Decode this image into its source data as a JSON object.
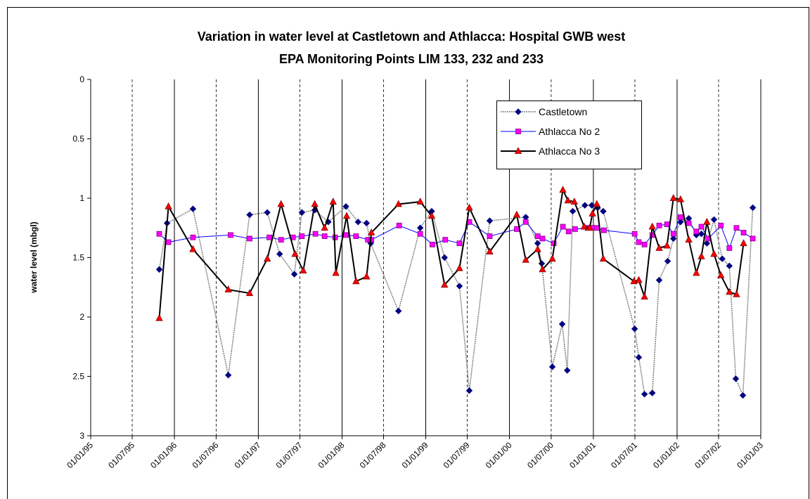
{
  "chart_data": {
    "type": "line",
    "title": "Variation in water level at Castletown and Athlacca: Hospital GWB west",
    "subtitle": "EPA Monitoring Points LIM 133, 232 and 233",
    "y_label": "water level (mbgl)",
    "ylim": [
      0,
      3
    ],
    "y_inverted": true,
    "yticks": [
      0,
      0.5,
      1,
      1.5,
      2,
      2.5,
      3
    ],
    "xlim": [
      "1995-01-01",
      "2003-01-01"
    ],
    "xticks": [
      {
        "value": "1995-01-01",
        "label": "01/01/95"
      },
      {
        "value": "1995-07-01",
        "label": "01/07/95"
      },
      {
        "value": "1996-01-01",
        "label": "01/01/96"
      },
      {
        "value": "1996-07-01",
        "label": "01/07/96"
      },
      {
        "value": "1997-01-01",
        "label": "01/01/97"
      },
      {
        "value": "1997-07-01",
        "label": "01/07/97"
      },
      {
        "value": "1998-01-01",
        "label": "01/01/98"
      },
      {
        "value": "1998-07-01",
        "label": "01/07/98"
      },
      {
        "value": "1999-01-01",
        "label": "01/01/99"
      },
      {
        "value": "1999-07-01",
        "label": "01/07/99"
      },
      {
        "value": "2000-01-01",
        "label": "01/01/00"
      },
      {
        "value": "2000-07-01",
        "label": "01/07/00"
      },
      {
        "value": "2001-01-01",
        "label": "01/01/01"
      },
      {
        "value": "2001-07-01",
        "label": "01/07/01"
      },
      {
        "value": "2002-01-01",
        "label": "01/01/02"
      },
      {
        "value": "2002-07-01",
        "label": "01/07/02"
      },
      {
        "value": "2003-01-01",
        "label": "01/01/03"
      }
    ],
    "grid": true,
    "legend_position": "top-right",
    "series": [
      {
        "name": "Castletown",
        "color": "#000080",
        "line_color": "#808080",
        "marker": "diamond",
        "x": [
          "1995-10-27",
          "1995-11-30",
          "1996-03-22",
          "1996-08-23",
          "1996-11-24",
          "1997-02-09",
          "1997-04-04",
          "1997-06-07",
          "1997-07-10",
          "1997-09-04",
          "1997-11-02",
          "1998-01-18",
          "1998-03-12",
          "1998-04-18",
          "1998-05-06",
          "1998-09-04",
          "1998-12-08",
          "1999-01-27",
          "1999-03-24",
          "1999-05-28",
          "1999-07-10",
          "1999-10-07",
          "2000-03-12",
          "2000-05-03",
          "2000-05-21",
          "2000-07-06",
          "2000-08-18",
          "2000-09-09",
          "2000-10-03",
          "2000-11-25",
          "2000-12-25",
          "2001-01-19",
          "2001-02-13",
          "2001-06-30",
          "2001-07-18",
          "2001-08-12",
          "2001-09-15",
          "2001-10-15",
          "2001-11-21",
          "2001-12-16",
          "2002-01-16",
          "2002-02-21",
          "2002-03-26",
          "2002-04-17",
          "2002-05-11",
          "2002-06-11",
          "2002-07-17",
          "2002-08-17",
          "2002-09-14",
          "2002-10-15",
          "2002-11-27"
        ],
        "values": [
          1.6,
          1.21,
          1.09,
          2.49,
          1.14,
          1.12,
          1.47,
          1.64,
          1.12,
          1.1,
          1.2,
          1.07,
          1.2,
          1.21,
          1.38,
          1.95,
          1.25,
          1.11,
          1.5,
          1.74,
          2.62,
          1.19,
          1.16,
          1.38,
          1.55,
          2.42,
          2.06,
          2.45,
          1.11,
          1.06,
          1.06,
          1.08,
          1.11,
          2.1,
          2.34,
          2.65,
          2.64,
          1.69,
          1.53,
          1.34,
          1.2,
          1.17,
          1.31,
          1.3,
          1.38,
          1.18,
          1.51,
          1.57,
          2.52,
          2.66,
          1.08
        ]
      },
      {
        "name": "Athlacca No 2",
        "color": "#ff00ff",
        "line_color": "#0000ff",
        "marker": "square",
        "x": [
          "1995-10-27",
          "1995-12-06",
          "1996-03-22",
          "1996-09-02",
          "1996-11-24",
          "1997-02-18",
          "1997-04-10",
          "1997-06-01",
          "1997-07-10",
          "1997-09-07",
          "1997-10-17",
          "1997-12-02",
          "1998-01-18",
          "1998-03-03",
          "1998-04-24",
          "1998-05-09",
          "1998-09-07",
          "1998-12-08",
          "1999-01-30",
          "1999-03-27",
          "1999-05-28",
          "1999-07-10",
          "1999-10-07",
          "2000-02-02",
          "2000-03-12",
          "2000-05-03",
          "2000-05-24",
          "2000-07-12",
          "2000-08-21",
          "2000-09-15",
          "2000-10-13",
          "2000-12-07",
          "2000-12-28",
          "2001-01-16",
          "2001-02-16",
          "2001-06-30",
          "2001-07-18",
          "2001-08-12",
          "2001-09-15",
          "2001-10-15",
          "2001-11-18",
          "2001-12-16",
          "2002-01-16",
          "2002-02-21",
          "2002-03-26",
          "2002-04-17",
          "2002-05-17",
          "2002-07-11",
          "2002-08-17",
          "2002-09-17",
          "2002-10-18",
          "2002-11-27"
        ],
        "values": [
          1.3,
          1.37,
          1.33,
          1.31,
          1.34,
          1.33,
          1.35,
          1.33,
          1.32,
          1.3,
          1.32,
          1.33,
          1.31,
          1.32,
          1.35,
          1.35,
          1.23,
          1.3,
          1.39,
          1.35,
          1.38,
          1.2,
          1.32,
          1.26,
          1.2,
          1.32,
          1.34,
          1.38,
          1.24,
          1.28,
          1.26,
          1.25,
          1.25,
          1.25,
          1.27,
          1.3,
          1.37,
          1.39,
          1.31,
          1.23,
          1.22,
          1.3,
          1.16,
          1.21,
          1.28,
          1.24,
          1.34,
          1.23,
          1.42,
          1.25,
          1.29,
          1.34
        ]
      },
      {
        "name": "Athlacca No 3",
        "color": "#ff0000",
        "line_color": "#000000",
        "marker": "triangle",
        "x": [
          "1995-10-27",
          "1995-12-06",
          "1996-03-22",
          "1996-08-23",
          "1996-11-24",
          "1997-02-09",
          "1997-04-10",
          "1997-06-10",
          "1997-07-16",
          "1997-09-04",
          "1997-10-17",
          "1997-11-23",
          "1997-12-05",
          "1998-01-21",
          "1998-03-03",
          "1998-04-18",
          "1998-05-09",
          "1998-09-04",
          "1998-12-08",
          "1999-01-27",
          "1999-03-24",
          "1999-05-28",
          "1999-07-10",
          "1999-10-07",
          "2000-02-02",
          "2000-03-12",
          "2000-05-03",
          "2000-05-24",
          "2000-07-06",
          "2000-08-21",
          "2000-09-12",
          "2000-10-10",
          "2000-11-22",
          "2000-12-16",
          "2000-12-28",
          "2001-01-16",
          "2001-02-13",
          "2001-06-27",
          "2001-07-18",
          "2001-08-12",
          "2001-09-15",
          "2001-10-15",
          "2001-11-18",
          "2001-12-16",
          "2002-01-16",
          "2002-02-21",
          "2002-03-26",
          "2002-04-17",
          "2002-05-11",
          "2002-06-11",
          "2002-07-11",
          "2002-08-17",
          "2002-09-17",
          "2002-10-18"
        ],
        "values": [
          2.01,
          1.07,
          1.43,
          1.77,
          1.8,
          1.51,
          1.05,
          1.47,
          1.61,
          1.05,
          1.25,
          1.03,
          1.63,
          1.15,
          1.7,
          1.66,
          1.29,
          1.05,
          1.03,
          1.15,
          1.73,
          1.59,
          1.08,
          1.45,
          1.14,
          1.52,
          1.43,
          1.6,
          1.51,
          0.93,
          1.02,
          1.03,
          1.24,
          1.25,
          1.13,
          1.05,
          1.51,
          1.7,
          1.69,
          1.83,
          1.24,
          1.42,
          1.4,
          1.0,
          1.01,
          1.35,
          1.63,
          1.49,
          1.2,
          1.47,
          1.65,
          1.79,
          1.81,
          1.38
        ]
      }
    ]
  }
}
